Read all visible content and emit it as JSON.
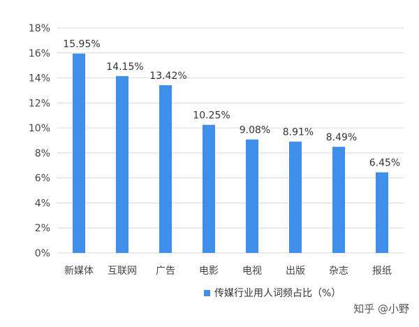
{
  "chart_data": {
    "type": "bar",
    "categories": [
      "新媒体",
      "互联网",
      "广告",
      "电影",
      "电视",
      "出版",
      "杂志",
      "报纸"
    ],
    "values": [
      15.95,
      14.15,
      13.42,
      10.25,
      9.08,
      8.91,
      8.49,
      6.45
    ],
    "value_labels": [
      "15.95%",
      "14.15%",
      "13.42%",
      "10.25%",
      "9.08%",
      "8.91%",
      "8.49%",
      "6.45%"
    ],
    "series": [
      {
        "name": "传媒行业用人词频占比（%）",
        "values": [
          15.95,
          14.15,
          13.42,
          10.25,
          9.08,
          8.91,
          8.49,
          6.45
        ]
      }
    ],
    "ylim": [
      0,
      18
    ],
    "y_ticks": [
      0,
      2,
      4,
      6,
      8,
      10,
      12,
      14,
      16,
      18
    ],
    "y_tick_labels": [
      "0%",
      "2%",
      "4%",
      "6%",
      "8%",
      "10%",
      "12%",
      "14%",
      "16%",
      "18%"
    ],
    "grid": true,
    "legend_position": "bottom",
    "colors": {
      "bar": "#3f8fe8",
      "grid": "#d9d9d9",
      "axis_text": "#444444"
    }
  },
  "watermark": "知乎 @小野"
}
